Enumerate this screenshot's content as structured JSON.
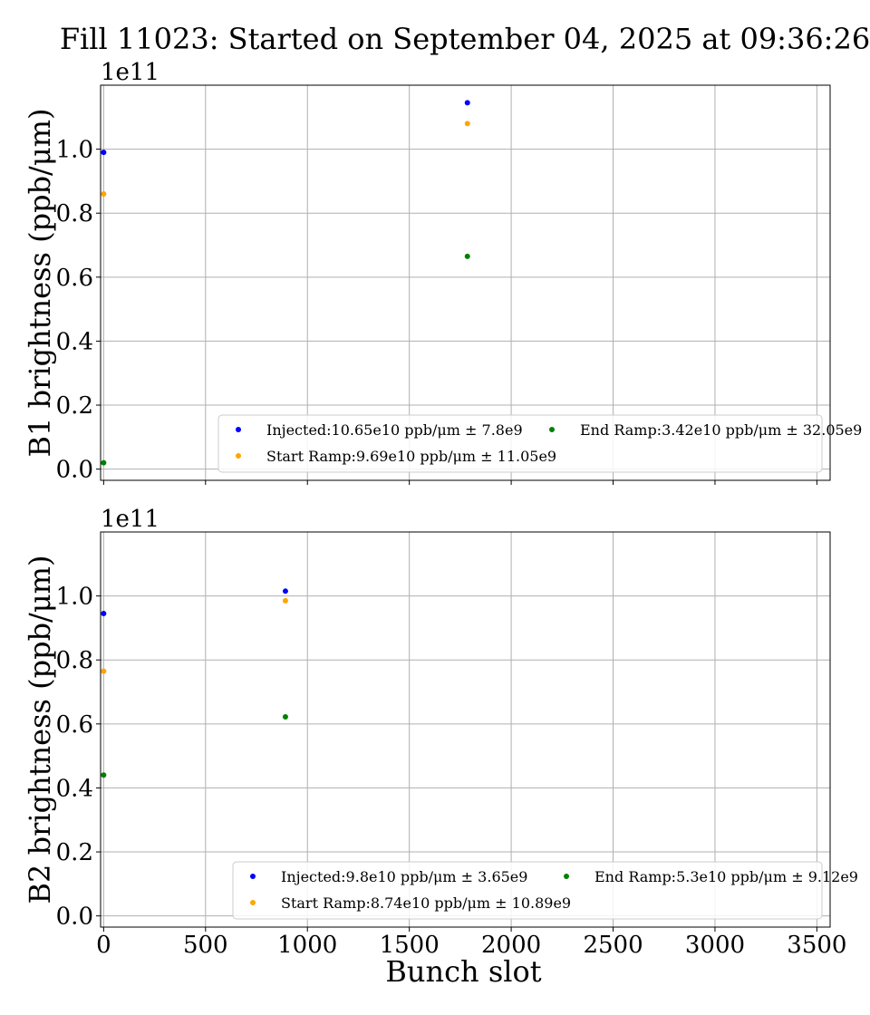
{
  "title": "Fill 11023: Started on September 04, 2025 at 09:36:26",
  "chart_data": [
    {
      "type": "scatter",
      "ylabel": "B1 brightness (ppb/μm)",
      "xlabel": "",
      "y_offset_label": "1e11",
      "xlim": [
        -15,
        3565
      ],
      "ylim": [
        -3500000000.0,
        120000000000.0
      ],
      "x_ticks": [
        0,
        500,
        1000,
        1500,
        2000,
        2500,
        3000,
        3500
      ],
      "x_tick_labels_visible": false,
      "y_ticks": [
        0.0,
        0.2,
        0.4,
        0.6,
        0.8,
        1.0
      ],
      "y_tick_labels": [
        "0.0",
        "0.2",
        "0.4",
        "0.6",
        "0.8",
        "1.0"
      ],
      "grid": true,
      "legend_position": "lower-right",
      "series": [
        {
          "name": "Injected:10.65e10 ppb/μm ± 7.8e9",
          "color": "#0000ff",
          "points": [
            {
              "x": 0,
              "y": 99000000000.0
            },
            {
              "x": 1785,
              "y": 114500000000.0
            }
          ]
        },
        {
          "name": "Start Ramp:9.69e10 ppb/μm ± 11.05e9",
          "color": "#ffa500",
          "points": [
            {
              "x": 0,
              "y": 86000000000.0
            },
            {
              "x": 1785,
              "y": 108000000000.0
            }
          ]
        },
        {
          "name": "End Ramp:3.42e10 ppb/μm ± 32.05e9",
          "color": "#008000",
          "points": [
            {
              "x": 0,
              "y": 2000000000.0
            },
            {
              "x": 1785,
              "y": 66500000000.0
            }
          ]
        }
      ]
    },
    {
      "type": "scatter",
      "ylabel": "B2 brightness (ppb/μm)",
      "xlabel": "Bunch slot",
      "y_offset_label": "1e11",
      "xlim": [
        -15,
        3565
      ],
      "ylim": [
        -3500000000.0,
        120000000000.0
      ],
      "x_ticks": [
        0,
        500,
        1000,
        1500,
        2000,
        2500,
        3000,
        3500
      ],
      "x_tick_labels": [
        "0",
        "500",
        "1000",
        "1500",
        "2000",
        "2500",
        "3000",
        "3500"
      ],
      "x_tick_labels_visible": true,
      "y_ticks": [
        0.0,
        0.2,
        0.4,
        0.6,
        0.8,
        1.0
      ],
      "y_tick_labels": [
        "0.0",
        "0.2",
        "0.4",
        "0.6",
        "0.8",
        "1.0"
      ],
      "grid": true,
      "legend_position": "lower-right",
      "series": [
        {
          "name": "Injected:9.8e10 ppb/μm ± 3.65e9",
          "color": "#0000ff",
          "points": [
            {
              "x": 0,
              "y": 94500000000.0
            },
            {
              "x": 892,
              "y": 101500000000.0
            }
          ]
        },
        {
          "name": "Start Ramp:8.74e10 ppb/μm ± 10.89e9",
          "color": "#ffa500",
          "points": [
            {
              "x": 0,
              "y": 76500000000.0
            },
            {
              "x": 892,
              "y": 98500000000.0
            }
          ]
        },
        {
          "name": "End Ramp:5.3e10 ppb/μm ± 9.12e9",
          "color": "#008000",
          "points": [
            {
              "x": 0,
              "y": 44000000000.0
            },
            {
              "x": 892,
              "y": 62200000000.0
            }
          ]
        }
      ]
    }
  ]
}
